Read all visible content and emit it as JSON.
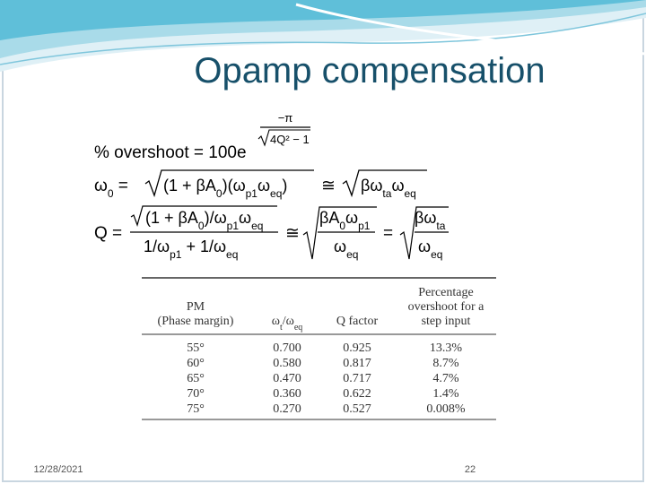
{
  "title": "Opamp compensation",
  "equations": [
    {
      "lhs": "% overshoot = 100e",
      "exp_num": "−π",
      "exp_den": "4Q² − 1"
    },
    {
      "parts": [
        "ω",
        "0",
        " = ",
        "(1 + βA",
        "0",
        ")(ω",
        "p1",
        "ω",
        "eq",
        ")",
        "≅",
        "βω",
        "ta",
        "ω",
        "eq"
      ]
    },
    {
      "parts": [
        "Q =",
        "(1 + βA",
        "0",
        ")/ω",
        "p1",
        "ω",
        "eq",
        "1/ω",
        "p1",
        " + 1/ω",
        "eq",
        "≅",
        "βA",
        "0",
        "ω",
        "p1",
        "ω",
        "eq",
        "=",
        "βω",
        "ta",
        "ω",
        "eq"
      ]
    }
  ],
  "table": {
    "header": [
      [
        "PM",
        "(Phase margin)"
      ],
      [
        "ω",
        "t",
        "/ω",
        "eq"
      ],
      [
        "Q factor"
      ],
      [
        "Percentage",
        "overshoot for a",
        "step input"
      ]
    ],
    "rows": [
      [
        "55°",
        "0.700",
        "0.925",
        "13.3%"
      ],
      [
        "60°",
        "0.580",
        "0.817",
        "8.7%"
      ],
      [
        "65°",
        "0.470",
        "0.717",
        "4.7%"
      ],
      [
        "70°",
        "0.360",
        "0.622",
        "1.4%"
      ],
      [
        "75°",
        "0.270",
        "0.527",
        "0.008%"
      ]
    ]
  },
  "footer": {
    "date": "12/28/2021",
    "page": "22"
  }
}
